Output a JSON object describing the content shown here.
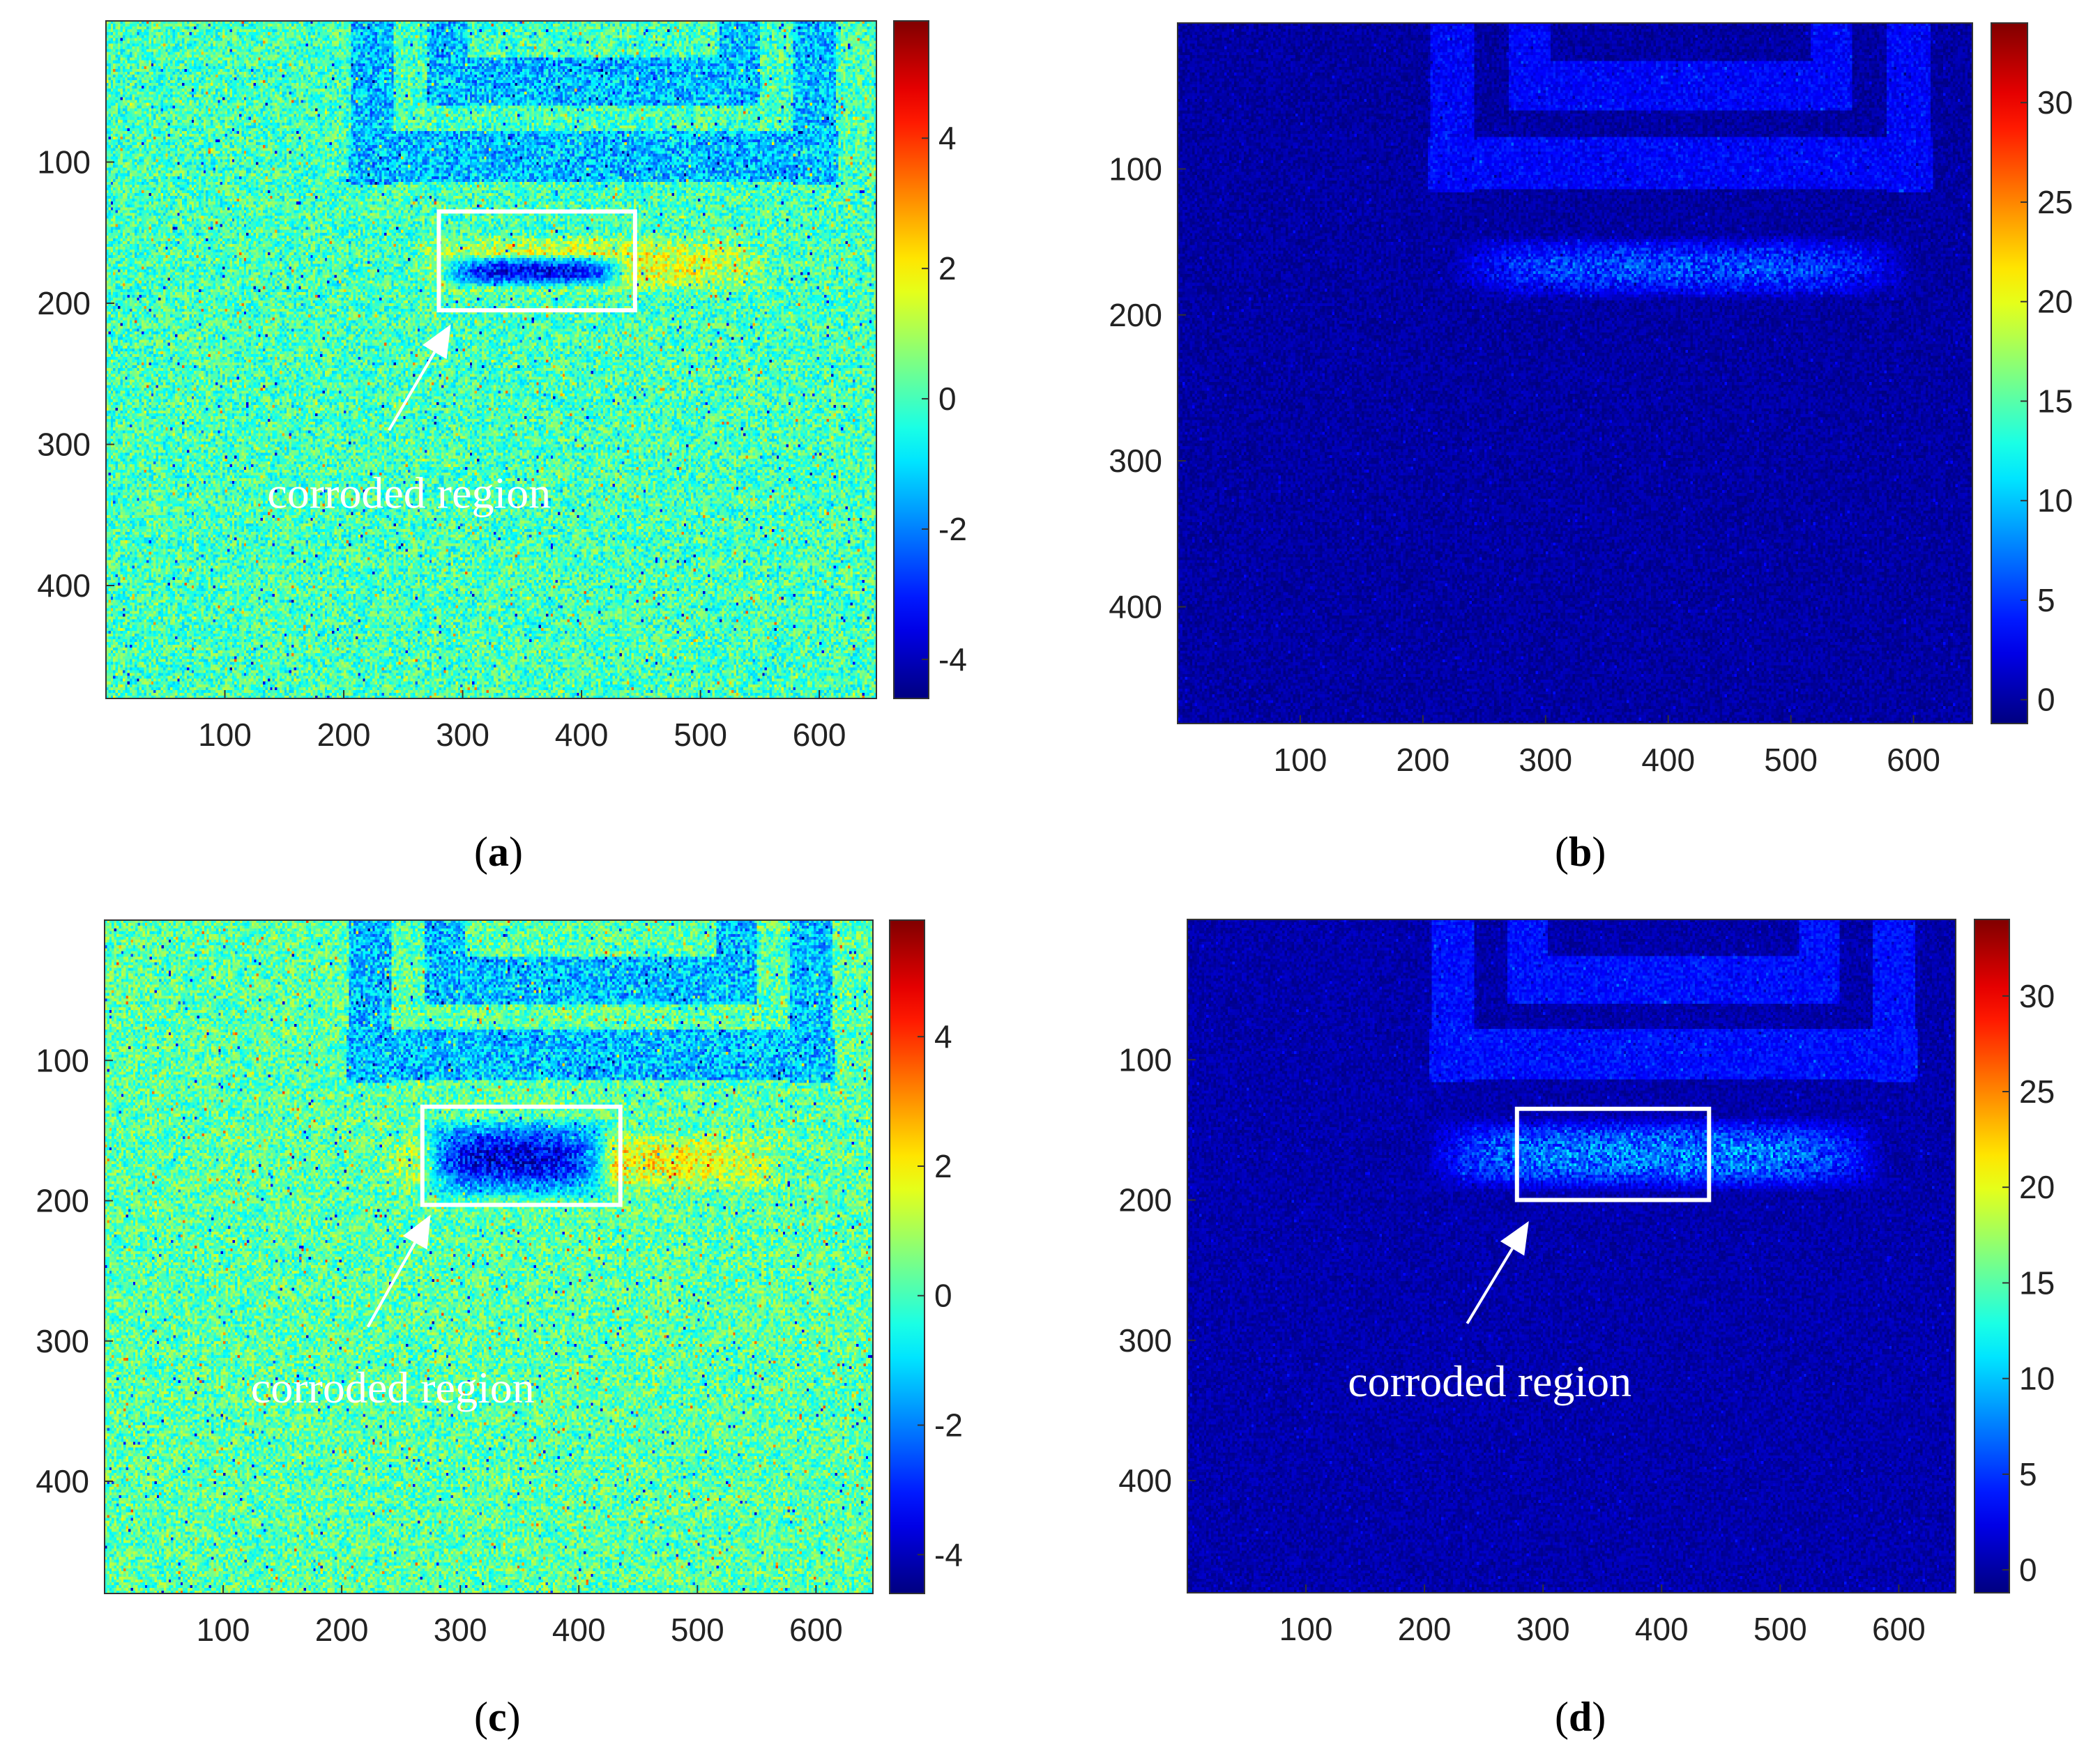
{
  "chart_data": [
    {
      "id": "a",
      "type": "heatmap",
      "panel_label": "a",
      "title": "",
      "xlabel": "",
      "ylabel": "",
      "x_ticks": [
        100,
        200,
        300,
        400,
        500,
        600
      ],
      "y_ticks": [
        100,
        200,
        300,
        400
      ],
      "xlim": [
        0,
        648
      ],
      "ylim": [
        0,
        480
      ],
      "colorbar": {
        "ticks": [
          4,
          2,
          0,
          -2,
          -4
        ],
        "range": [
          -4.6,
          5.8
        ],
        "colormap": "jet"
      },
      "background_level": 0.0,
      "features": [
        {
          "kind": "square-trace",
          "level": -1.5,
          "x_range": [
            205,
            615
          ],
          "y_range": [
            0,
            115
          ]
        },
        {
          "kind": "warm-band",
          "level": 2.0,
          "x_range": [
            255,
            560
          ],
          "y_range": [
            150,
            195
          ]
        },
        {
          "kind": "cold-band",
          "level": -3.5,
          "x_range": [
            280,
            440
          ],
          "y_range": [
            165,
            190
          ]
        }
      ],
      "box": {
        "x": [
          280,
          445
        ],
        "y": [
          135,
          205
        ]
      },
      "arrow": {
        "from": [
          238,
          290
        ],
        "to": [
          290,
          215
        ]
      },
      "annotation": {
        "text": "corroded region",
        "at": [
          255,
          335
        ]
      }
    },
    {
      "id": "b",
      "type": "heatmap",
      "panel_label": "b",
      "title": "",
      "xlabel": "",
      "ylabel": "",
      "x_ticks": [
        100,
        200,
        300,
        400,
        500,
        600
      ],
      "y_ticks": [
        100,
        200,
        300,
        400
      ],
      "xlim": [
        0,
        648
      ],
      "ylim": [
        0,
        480
      ],
      "colorbar": {
        "ticks": [
          30,
          25,
          20,
          15,
          10,
          5,
          0
        ],
        "range": [
          -1.2,
          34
        ],
        "colormap": "jet"
      },
      "background_level": 0.0,
      "features": [
        {
          "kind": "square-trace",
          "level": 3.5,
          "x_range": [
            205,
            615
          ],
          "y_range": [
            0,
            115
          ]
        },
        {
          "kind": "speckle-band",
          "level": 6.0,
          "x_range": [
            220,
            600
          ],
          "y_range": [
            145,
            190
          ]
        }
      ]
    },
    {
      "id": "c",
      "type": "heatmap",
      "panel_label": "c",
      "title": "",
      "xlabel": "",
      "ylabel": "",
      "x_ticks": [
        100,
        200,
        300,
        400,
        500,
        600
      ],
      "y_ticks": [
        100,
        200,
        300,
        400
      ],
      "xlim": [
        0,
        648
      ],
      "ylim": [
        0,
        480
      ],
      "colorbar": {
        "ticks": [
          4,
          2,
          0,
          -2,
          -4
        ],
        "range": [
          -4.6,
          5.8
        ],
        "colormap": "jet"
      },
      "background_level": 0.2,
      "features": [
        {
          "kind": "square-trace",
          "level": -1.5,
          "x_range": [
            205,
            615
          ],
          "y_range": [
            0,
            115
          ]
        },
        {
          "kind": "warm-band",
          "level": 2.2,
          "x_range": [
            230,
            580
          ],
          "y_range": [
            150,
            195
          ]
        },
        {
          "kind": "cold-band",
          "level": -3.8,
          "x_range": [
            265,
            430
          ],
          "y_range": [
            140,
            200
          ]
        }
      ],
      "box": {
        "x": [
          268,
          435
        ],
        "y": [
          133,
          203
        ]
      },
      "arrow": {
        "from": [
          222,
          290
        ],
        "to": [
          275,
          210
        ]
      },
      "annotation": {
        "text": "corroded region",
        "at": [
          243,
          334
        ]
      }
    },
    {
      "id": "d",
      "type": "heatmap",
      "panel_label": "d",
      "title": "",
      "xlabel": "",
      "ylabel": "",
      "x_ticks": [
        100,
        200,
        300,
        400,
        500,
        600
      ],
      "y_ticks": [
        100,
        200,
        300,
        400
      ],
      "xlim": [
        0,
        648
      ],
      "ylim": [
        0,
        480
      ],
      "colorbar": {
        "ticks": [
          30,
          25,
          20,
          15,
          10,
          5,
          0
        ],
        "range": [
          -1.2,
          34
        ],
        "colormap": "jet"
      },
      "background_level": 0.3,
      "features": [
        {
          "kind": "square-trace",
          "level": 4.0,
          "x_range": [
            205,
            615
          ],
          "y_range": [
            0,
            115
          ]
        },
        {
          "kind": "speckle-band",
          "level": 8.0,
          "x_range": [
            200,
            590
          ],
          "y_range": [
            140,
            195
          ]
        }
      ],
      "box": {
        "x": [
          278,
          440
        ],
        "y": [
          135,
          200
        ]
      },
      "arrow": {
        "from": [
          236,
          288
        ],
        "to": [
          288,
          215
        ]
      },
      "annotation": {
        "text": "corroded region",
        "at": [
          255,
          330
        ]
      }
    }
  ]
}
